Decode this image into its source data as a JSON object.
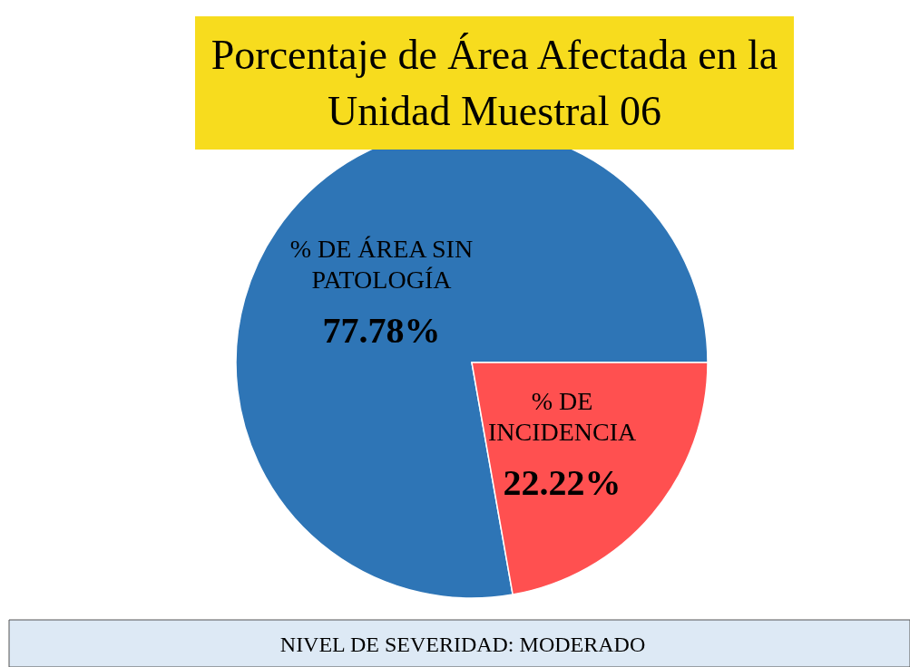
{
  "chart_data": {
    "type": "pie",
    "title": "Porcentaje de Área Afectada en la Unidad Muestral 06",
    "categories": [
      "% DE ÁREA SIN PATOLOGÍA",
      "% DE INCIDENCIA"
    ],
    "values": [
      77.78,
      22.22
    ],
    "colors": [
      "#2e75b6",
      "#ff5050"
    ],
    "value_labels": [
      "77.78%",
      "22.22%"
    ],
    "annotations": [
      "NIVEL DE SEVERIDAD: MODERADO"
    ]
  }
}
